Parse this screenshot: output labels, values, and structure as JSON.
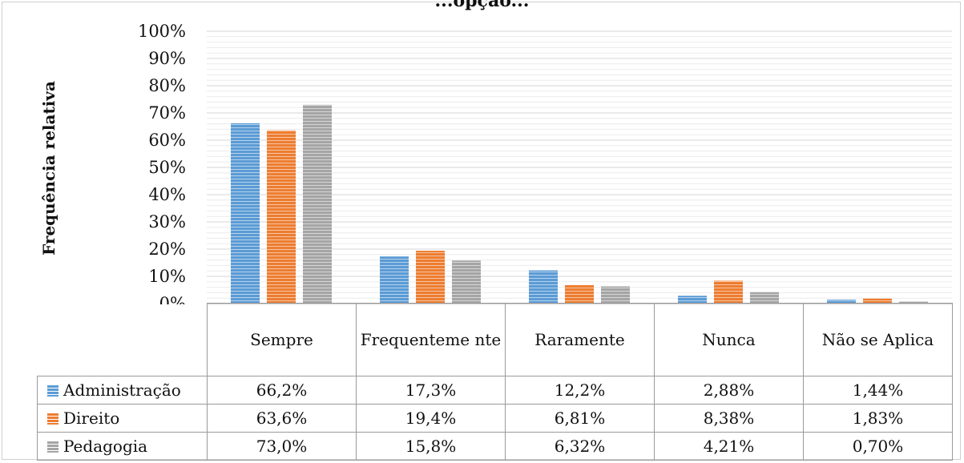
{
  "chart_data": {
    "type": "bar",
    "title": "...opção...",
    "ylabel": "Frequência relativa",
    "ylim": [
      0,
      100
    ],
    "yticks": [
      "0%",
      "10%",
      "20%",
      "30%",
      "40%",
      "50%",
      "60%",
      "70%",
      "80%",
      "90%",
      "100%"
    ],
    "categories": [
      "Sempre",
      "Frequenteme nte",
      "Raramente",
      "Nunca",
      "Não se Aplica"
    ],
    "series": [
      {
        "name": "Administração",
        "values": [
          66.2,
          17.3,
          12.2,
          2.88,
          1.44
        ],
        "labels": [
          "66,2%",
          "17,3%",
          "12,2%",
          "2,88%",
          "1,44%"
        ],
        "color": "#5b9bd5"
      },
      {
        "name": "Direito",
        "values": [
          63.6,
          19.4,
          6.81,
          8.38,
          1.83
        ],
        "labels": [
          "63,6%",
          "19,4%",
          "6,81%",
          "8,38%",
          "1,83%"
        ],
        "color": "#ed7d31"
      },
      {
        "name": "Pedagogia",
        "values": [
          73.0,
          15.8,
          6.32,
          4.21,
          0.7
        ],
        "labels": [
          "73,0%",
          "15,8%",
          "6,32%",
          "4,21%",
          "0,70%"
        ],
        "color": "#a5a5a5"
      }
    ],
    "grid": true,
    "legend": "data-table"
  }
}
